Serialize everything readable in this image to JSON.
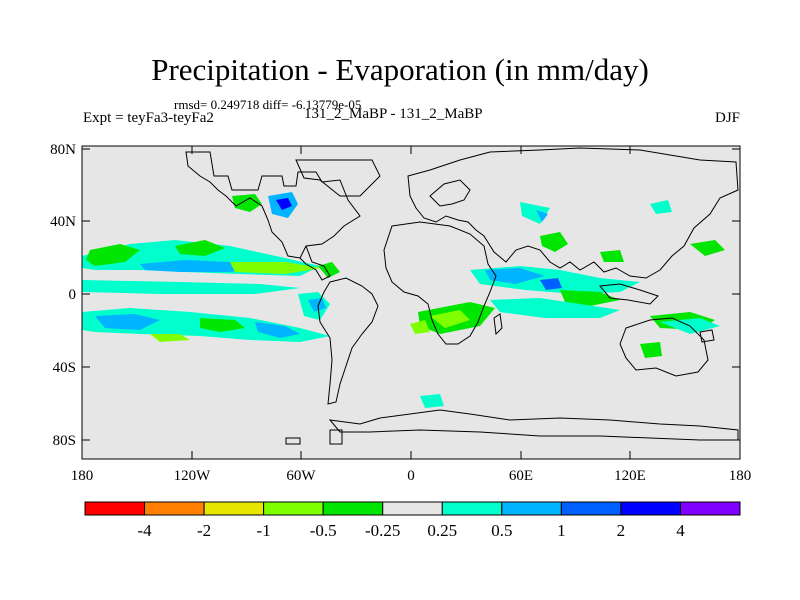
{
  "title": "Precipitation - Evaporation (in mm/day)",
  "stats_line": "rmsd= 0.249718 diff= -6.13779e-05",
  "experiment_label": "Expt = teyFa3-teyFa2",
  "case_label": "131_2_MaBP - 131_2_MaBP",
  "season_label": "DJF",
  "map": {
    "background_color": "#e6e6e6",
    "coastline_color": "#000000",
    "lat_ticks": [
      "80N",
      "40N",
      "0",
      "40S",
      "80S"
    ],
    "lon_ticks": [
      "180",
      "120W",
      "60W",
      "0",
      "60E",
      "120E",
      "180"
    ]
  },
  "colorbar": {
    "colors": [
      "#ff0000",
      "#ff7f00",
      "#e6e600",
      "#80ff00",
      "#00e600",
      "#e6e6e6",
      "#00ffcc",
      "#00b4ff",
      "#0060ff",
      "#0000ff",
      "#8000ff"
    ],
    "labels": [
      "-4",
      "-2",
      "-1",
      "-0.5",
      "-0.25",
      "0.25",
      "0.5",
      "1",
      "2",
      "4"
    ]
  }
}
